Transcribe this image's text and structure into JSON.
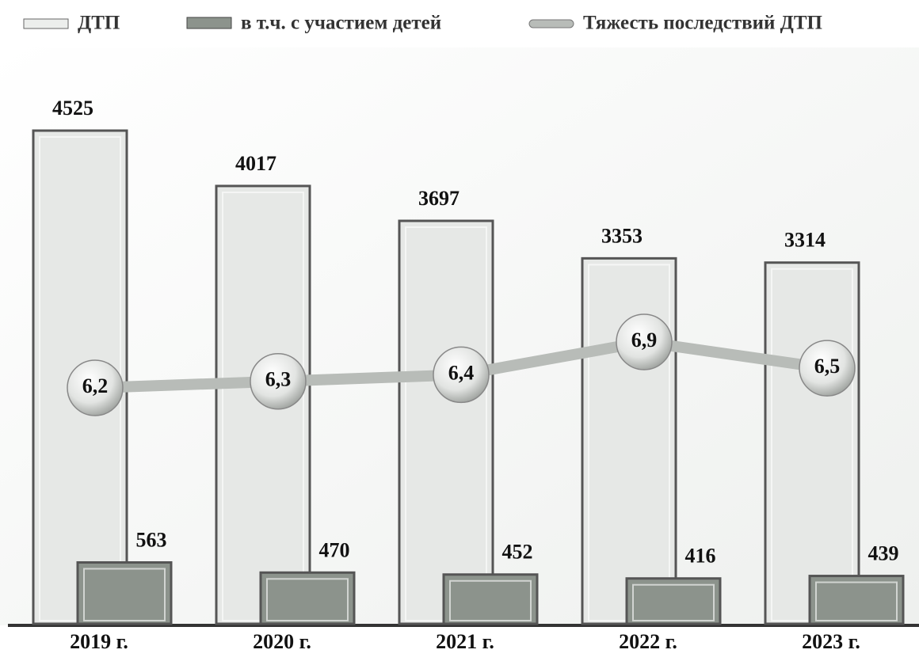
{
  "chart_data": {
    "type": "bar",
    "categories": [
      "2019 г.",
      "2020 г.",
      "2021 г.",
      "2022 г.",
      "2023 г."
    ],
    "series": [
      {
        "name": "ДТП",
        "color": "#e6e8e6",
        "values": [
          4525,
          4017,
          3697,
          3353,
          3314
        ]
      },
      {
        "name": "в т.ч. с участием детей",
        "color": "#8c938c",
        "values": [
          563,
          470,
          452,
          416,
          439
        ]
      },
      {
        "name": "Тяжесть последствий ДТП",
        "color": "#b8bcb8",
        "type": "line",
        "axis": "y2",
        "values": [
          6.2,
          6.3,
          6.4,
          6.9,
          6.5
        ],
        "value_labels": [
          "6,2",
          "6,3",
          "6,4",
          "6,9",
          "6,5"
        ]
      }
    ]
  }
}
